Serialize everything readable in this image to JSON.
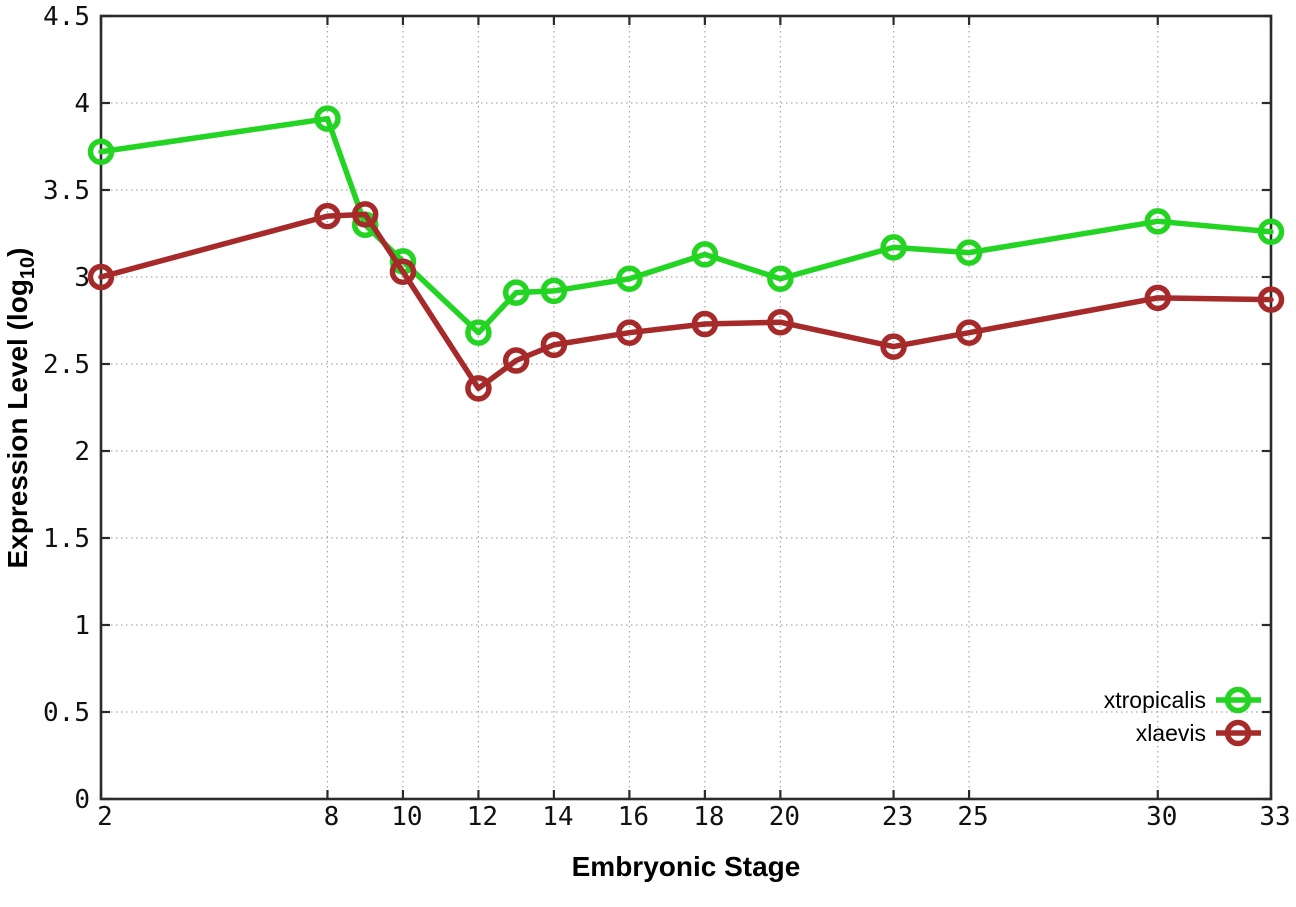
{
  "chart_data": {
    "type": "line",
    "title": "",
    "xlabel": "Embryonic Stage",
    "ylabel": "Expression Level (log10)",
    "ylabel_parts": {
      "main": "Expression Level (log",
      "sub": "10",
      "end": ")"
    },
    "xlim": [
      2,
      33
    ],
    "ylim": [
      0,
      4.5
    ],
    "grid": true,
    "legend_position": "bottom-right-inside",
    "x": [
      2,
      8,
      9,
      10,
      12,
      13,
      14,
      16,
      18,
      20,
      23,
      25,
      30,
      33
    ],
    "series": [
      {
        "name": "xtropicalis",
        "color": "#23d423",
        "values": [
          3.72,
          3.91,
          3.3,
          3.09,
          2.68,
          2.91,
          2.92,
          2.99,
          3.13,
          2.99,
          3.17,
          3.14,
          3.32,
          3.26
        ]
      },
      {
        "name": "xlaevis",
        "color": "#a62a2a",
        "values": [
          3.0,
          3.35,
          3.36,
          3.03,
          2.36,
          2.52,
          2.61,
          2.68,
          2.73,
          2.74,
          2.6,
          2.68,
          2.88,
          2.87
        ]
      }
    ],
    "xticks": [
      {
        "v": 2,
        "label": "2"
      },
      {
        "v": 8,
        "label": "8"
      },
      {
        "v": 10,
        "label": "10"
      },
      {
        "v": 12,
        "label": "12"
      },
      {
        "v": 14,
        "label": "14"
      },
      {
        "v": 16,
        "label": "16"
      },
      {
        "v": 18,
        "label": "18"
      },
      {
        "v": 20,
        "label": "20"
      },
      {
        "v": 23,
        "label": "23"
      },
      {
        "v": 25,
        "label": "25"
      },
      {
        "v": 30,
        "label": "30"
      },
      {
        "v": 33,
        "label": "33"
      }
    ],
    "yticks": [
      {
        "v": 0,
        "label": "0"
      },
      {
        "v": 0.5,
        "label": "0.5"
      },
      {
        "v": 1,
        "label": "1"
      },
      {
        "v": 1.5,
        "label": "1.5"
      },
      {
        "v": 2,
        "label": "2"
      },
      {
        "v": 2.5,
        "label": "2.5"
      },
      {
        "v": 3,
        "label": "3"
      },
      {
        "v": 3.5,
        "label": "3.5"
      },
      {
        "v": 4,
        "label": "4"
      },
      {
        "v": 4.5,
        "label": "4.5"
      }
    ]
  },
  "colors": {
    "background": "#ffffff",
    "border": "#2b2b2b",
    "grid": "#a6a6a6",
    "text": "#111111",
    "series_green": "#23d423",
    "series_red": "#a62a2a"
  }
}
